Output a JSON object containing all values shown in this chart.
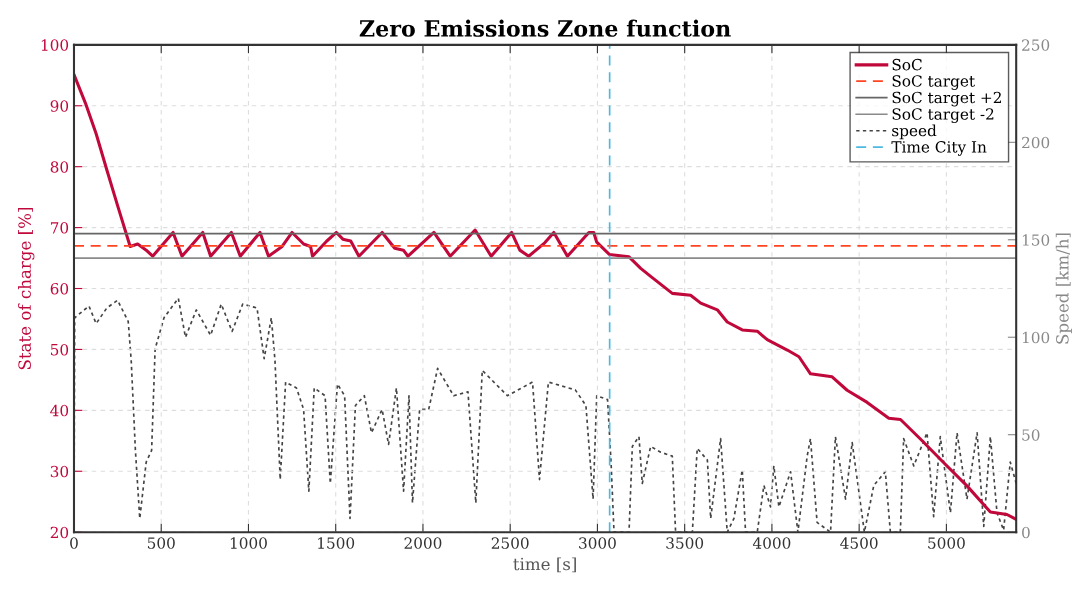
{
  "chart_data": {
    "type": "line",
    "title": "Zero Emissions Zone function",
    "xlabel": "time [s]",
    "ylabel": "State of charge [%]",
    "y2label": "Speed [km/h]",
    "xlim": [
      0,
      5400
    ],
    "xticks": [
      0,
      500,
      1000,
      1500,
      2000,
      2500,
      3000,
      3500,
      4000,
      4500,
      5000
    ],
    "ylim": [
      20,
      100
    ],
    "yticks": [
      20,
      30,
      40,
      50,
      60,
      70,
      80,
      90,
      100
    ],
    "y2lim": [
      0,
      250
    ],
    "y2ticks": [
      0,
      50,
      100,
      150,
      200,
      250
    ],
    "grid": true,
    "legend": "top right",
    "series": [
      {
        "name": "SoC",
        "color": "#c1083b",
        "line_style": "solid",
        "x": [
          0,
          66,
          127,
          188,
          250,
          322,
          365,
          414,
          451,
          568,
          619,
          738,
          783,
          902,
          953,
          1066,
          1115,
          1193,
          1250,
          1316,
          1356,
          1367,
          1449,
          1504,
          1541,
          1586,
          1633,
          1766,
          1838,
          1888,
          1914,
          2063,
          2156,
          2299,
          2391,
          2508,
          2555,
          2606,
          2698,
          2750,
          2828,
          2951,
          2979,
          2996,
          3068,
          3181,
          3248,
          3305,
          3429,
          3534,
          3592,
          3687,
          3744,
          3830,
          3916,
          3973,
          4088,
          4155,
          4221,
          4345,
          4431,
          4546,
          4670,
          4737,
          4851,
          4985,
          5118,
          5252,
          5347,
          5400
        ],
        "values": [
          95.1,
          90.4,
          85.4,
          79.5,
          73.6,
          66.9,
          67.3,
          66.3,
          65.3,
          69.2,
          65.3,
          69.2,
          65.3,
          69.2,
          65.3,
          69.2,
          65.3,
          66.9,
          69.2,
          67.3,
          66.9,
          65.3,
          67.8,
          69.2,
          68.1,
          67.8,
          65.3,
          69.2,
          66.6,
          66.3,
          65.3,
          69.2,
          65.3,
          69.6,
          65.3,
          69.2,
          66.3,
          65.3,
          67.5,
          69.2,
          65.3,
          69.2,
          69.2,
          67.6,
          65.6,
          65.2,
          63.3,
          62.0,
          59.2,
          58.9,
          57.6,
          56.5,
          54.5,
          53.2,
          53.0,
          51.6,
          49.9,
          48.8,
          46.0,
          45.5,
          43.3,
          41.3,
          38.7,
          38.5,
          35.3,
          31.4,
          27.6,
          23.3,
          22.9,
          22.1
        ]
      },
      {
        "name": "SoC target",
        "color": "#ff4422",
        "line_style": "dashed",
        "x": [
          0,
          5400
        ],
        "values": [
          67,
          67
        ]
      },
      {
        "name": "SoC target +2",
        "color": "#666666",
        "line_style": "solid",
        "x": [
          0,
          5400
        ],
        "values": [
          69,
          69
        ]
      },
      {
        "name": "SoC target -2",
        "color": "#8a8a8a",
        "line_style": "solid",
        "x": [
          0,
          5400
        ],
        "values": [
          65,
          65
        ]
      },
      {
        "name": "speed",
        "color": "#444444",
        "line_style": "dotted",
        "axis": "y2",
        "x": [
          0,
          4,
          86,
          127,
          188,
          250,
          311,
          328,
          352,
          377,
          414,
          445,
          465,
          516,
          598,
          639,
          701,
          783,
          844,
          906,
          967,
          1049,
          1090,
          1131,
          1152,
          1182,
          1213,
          1275,
          1316,
          1346,
          1377,
          1439,
          1469,
          1510,
          1551,
          1582,
          1613,
          1664,
          1705,
          1766,
          1803,
          1848,
          1889,
          1920,
          1940,
          1981,
          2033,
          2084,
          2176,
          2258,
          2303,
          2340,
          2484,
          2628,
          2668,
          2719,
          2873,
          2934,
          2975,
          2996,
          3058,
          3078,
          3095,
          3181,
          3200,
          3238,
          3257,
          3305,
          3363,
          3429,
          3448,
          3544,
          3572,
          3630,
          3649,
          3706,
          3744,
          3782,
          3830,
          3849,
          3916,
          3954,
          3992,
          4011,
          4040,
          4107,
          4149,
          4202,
          4221,
          4259,
          4336,
          4364,
          4422,
          4460,
          4530,
          4584,
          4650,
          4679,
          4736,
          4755,
          4813,
          4889,
          4927,
          4965,
          5023,
          5061,
          5118,
          5176,
          5214,
          5252,
          5290,
          5328,
          5366,
          5400
        ],
        "values": [
          0,
          110,
          116,
          107,
          115,
          119,
          108,
          88,
          42,
          7,
          36,
          42,
          94,
          110,
          120,
          100,
          114,
          101,
          117,
          103,
          117,
          115,
          89,
          110,
          88,
          27,
          77,
          74,
          63,
          21,
          74,
          70,
          25,
          76,
          70,
          7,
          65,
          70,
          51,
          63,
          45,
          74,
          21,
          70,
          15,
          63,
          63,
          84,
          70,
          72,
          15,
          83,
          70,
          77,
          27,
          77,
          73,
          65,
          17,
          70,
          68,
          36,
          0,
          0,
          44,
          49,
          25,
          44,
          41,
          39,
          0,
          0,
          43,
          37,
          7,
          48,
          0,
          7,
          32,
          0,
          0,
          24,
          13,
          34,
          13,
          31,
          0,
          39,
          48,
          5,
          0,
          49,
          17,
          46,
          0,
          24,
          31,
          0,
          0,
          48,
          34,
          51,
          8,
          49,
          10,
          51,
          17,
          51,
          3,
          49,
          10,
          1,
          36,
          25
        ]
      },
      {
        "name": "Time City In",
        "color": "#4db8e0",
        "line_style": "dashed",
        "x": [
          3070,
          3070
        ],
        "values": [
          20,
          100
        ]
      }
    ]
  }
}
